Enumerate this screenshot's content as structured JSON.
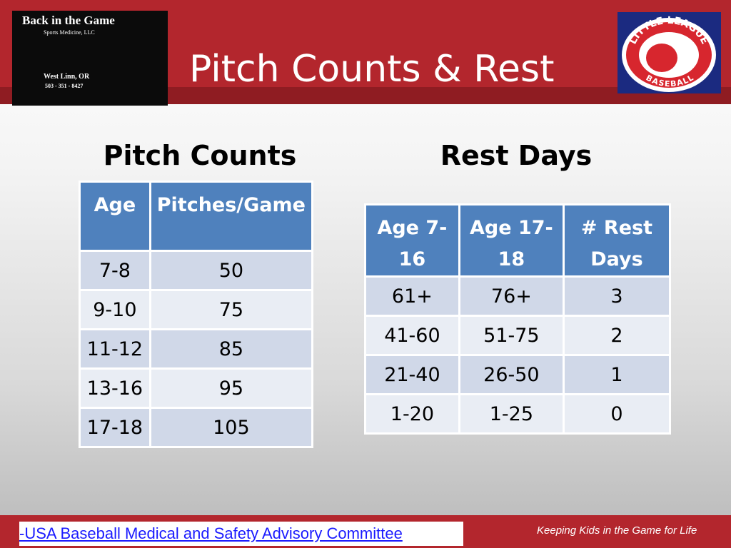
{
  "header": {
    "title": "Pitch Counts & Rest",
    "logo_left": {
      "name": "Back in the Game",
      "subtitle": "Sports Medicine, LLC",
      "location": "West Linn, OR",
      "phone": "503 - 351 - 8427"
    },
    "logo_right": {
      "top": "LITTLE LEAGUE",
      "bottom": "BASEBALL"
    }
  },
  "pitch_counts": {
    "heading": "Pitch Counts",
    "columns": [
      "Age",
      "Pitches/Game"
    ],
    "rows": [
      [
        "7-8",
        "50"
      ],
      [
        "9-10",
        "75"
      ],
      [
        "11-12",
        "85"
      ],
      [
        "13-16",
        "95"
      ],
      [
        "17-18",
        "105"
      ]
    ]
  },
  "rest_days": {
    "heading": "Rest Days",
    "columns": [
      "Age 7-16",
      "Age 17-18",
      "# Rest Days"
    ],
    "rows": [
      [
        "61+",
        "76+",
        "3"
      ],
      [
        "41-60",
        "51-75",
        "2"
      ],
      [
        "21-40",
        "26-50",
        "1"
      ],
      [
        "1-20",
        "1-25",
        "0"
      ]
    ]
  },
  "footer": {
    "source": "-USA Baseball Medical and Safety Advisory Committee",
    "tagline": "Keeping Kids in the Game for Life"
  }
}
